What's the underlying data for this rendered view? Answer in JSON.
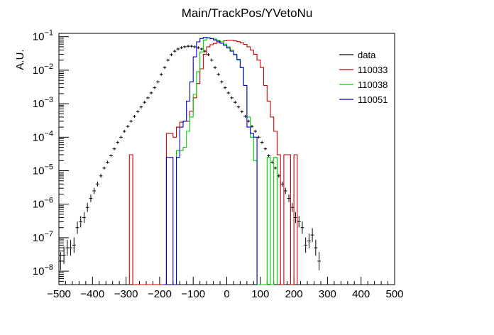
{
  "chart_data": {
    "type": "line",
    "title": "Main/TrackPos/YVetoNu",
    "xlabel": "",
    "ylabel": "A.U.",
    "xlim": [
      -500,
      500
    ],
    "ylog": true,
    "ylim_exp": [
      -8.4,
      -0.9
    ],
    "xticks": [
      "−500",
      "−400",
      "−300",
      "−200",
      "−100",
      "0",
      "100",
      "200",
      "300",
      "400",
      "500"
    ],
    "yticks": [
      {
        "base": "10",
        "exp": "−8",
        "e": -8
      },
      {
        "base": "10",
        "exp": "−7",
        "e": -7
      },
      {
        "base": "10",
        "exp": "−6",
        "e": -6
      },
      {
        "base": "10",
        "exp": "−5",
        "e": -5
      },
      {
        "base": "10",
        "exp": "−4",
        "e": -4
      },
      {
        "base": "10",
        "exp": "−3",
        "e": -3
      },
      {
        "base": "10",
        "exp": "−2",
        "e": -2
      },
      {
        "base": "10",
        "exp": "−1",
        "e": -1
      }
    ],
    "legend_position": "top-right",
    "bin_width": 10,
    "series": [
      {
        "name": "data",
        "color": "#000000",
        "style": "points",
        "x_start": -495,
        "y": [
          2e-08,
          3e-08,
          5e-08,
          5e-08,
          6e-08,
          2e-07,
          3e-07,
          4e-07,
          8e-07,
          1.5e-06,
          2.5e-06,
          4e-06,
          7e-06,
          1.2e-05,
          1.8e-05,
          2.8e-05,
          4.5e-05,
          7e-05,
          0.0001,
          0.00015,
          0.00021,
          0.0003,
          0.00042,
          0.00058,
          0.0008,
          0.0011,
          0.0015,
          0.0021,
          0.003,
          0.0045,
          0.0075,
          0.012,
          0.02,
          0.029,
          0.037,
          0.043,
          0.047,
          0.05,
          0.052,
          0.052,
          0.05,
          0.047,
          0.043,
          0.037,
          0.029,
          0.02,
          0.012,
          0.0075,
          0.0045,
          0.003,
          0.0021,
          0.0015,
          0.0011,
          0.0008,
          0.00058,
          0.00042,
          0.0003,
          0.00021,
          0.00015,
          0.0001,
          7e-05,
          4.5e-05,
          2.8e-05,
          1.8e-05,
          1.2e-05,
          7e-06,
          4e-06,
          2.5e-06,
          1.5e-06,
          8e-07,
          4e-07,
          3e-07,
          2e-07,
          6e-08,
          8e-08,
          1.2e-07,
          5e-08,
          2e-08
        ]
      },
      {
        "name": "110033",
        "color": "#cc0000",
        "style": "hist",
        "x_start": -290,
        "y": [
          3e-05,
          0,
          0,
          0,
          0,
          0,
          0,
          0,
          0,
          0,
          0,
          0.00013,
          0.00013,
          0.0001,
          0.0002,
          0.00028,
          0.0003,
          0.0003,
          0.0006,
          0.0015,
          0.004,
          0.011,
          0.03,
          0.05,
          0.058,
          0.063,
          0.067,
          0.07,
          0.075,
          0.078,
          0.078,
          0.075,
          0.071,
          0.066,
          0.059,
          0.05,
          0.04,
          0.03,
          0.02,
          0.012,
          0.0035,
          0.0012,
          0.0004,
          0.00015,
          3e-05,
          0,
          3e-05,
          3e-05,
          0,
          3e-05
        ]
      },
      {
        "name": "110038",
        "color": "#00cc00",
        "style": "hist",
        "x_start": -160,
        "y": [
          0,
          4e-05,
          4e-05,
          5e-05,
          0.00015,
          0.0004,
          0.0019,
          0.009,
          0.035,
          0.08,
          0.092,
          0.09,
          0.085,
          0.078,
          0.07,
          0.06,
          0.05,
          0.04,
          0.03,
          0.02,
          0.012,
          0.0035,
          0.0004,
          0.0001,
          2e-05,
          0,
          0,
          0,
          2.5e-05,
          0,
          2.5e-05
        ]
      },
      {
        "name": "110051",
        "color": "#0000cc",
        "style": "hist",
        "x_start": -190,
        "y": [
          0,
          2.5e-05,
          2.5e-05,
          0,
          2.5e-05,
          0.0002,
          0.0003,
          0.0012,
          0.0045,
          0.025,
          0.07,
          0.088,
          0.095,
          0.093,
          0.087,
          0.08,
          0.073,
          0.064,
          0.055,
          0.046,
          0.037,
          0.029,
          0.021,
          0.012,
          0.0035,
          0.0002,
          0.00013,
          0.0001
        ]
      }
    ]
  }
}
